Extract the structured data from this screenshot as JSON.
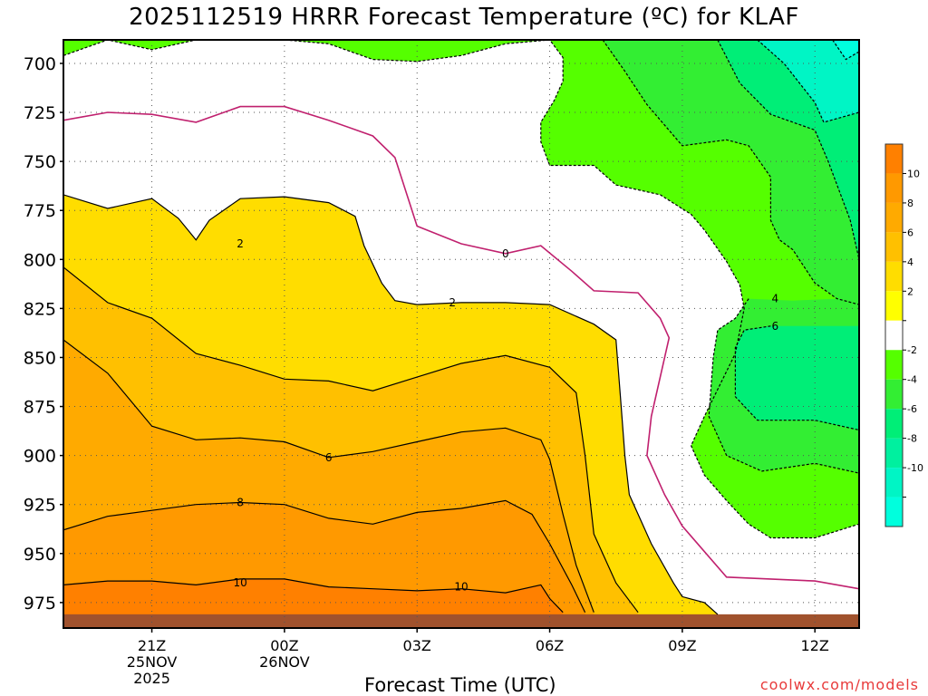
{
  "chart_data": {
    "type": "contour",
    "title": "2025112519 HRRR Forecast Temperature (ºC) for KLAF",
    "xlabel": "Forecast Time (UTC)",
    "ylabel": "",
    "credit": "coolwx.com/models",
    "x_ticks": [
      {
        "hour": 2,
        "label": "21Z",
        "sub1": "25NOV",
        "sub2": "2025"
      },
      {
        "hour": 5,
        "label": "00Z",
        "sub1": "26NOV",
        "sub2": ""
      },
      {
        "hour": 8,
        "label": "03Z",
        "sub1": "",
        "sub2": ""
      },
      {
        "hour": 11,
        "label": "06Z",
        "sub1": "",
        "sub2": ""
      },
      {
        "hour": 14,
        "label": "09Z",
        "sub1": "",
        "sub2": ""
      },
      {
        "hour": 17,
        "label": "12Z",
        "sub1": "",
        "sub2": ""
      }
    ],
    "xlim": [
      0,
      18
    ],
    "y_ticks": [
      700,
      725,
      750,
      775,
      800,
      825,
      850,
      875,
      900,
      925,
      950,
      975
    ],
    "ylim": [
      688,
      988
    ],
    "grid": true,
    "surface": [
      {
        "hour": 0,
        "p": 981
      },
      {
        "hour": 18,
        "p": 981
      }
    ],
    "colorbar": {
      "bins": [
        {
          "color": "#ff8000",
          "label": ""
        },
        {
          "color": "#ff9900",
          "label": "10"
        },
        {
          "color": "#ffaa00",
          "label": "8"
        },
        {
          "color": "#ffc000",
          "label": "6"
        },
        {
          "color": "#ffdd00",
          "label": "4"
        },
        {
          "color": "#ffff00",
          "label": "2"
        },
        {
          "color": "#ffffff",
          "label": ""
        },
        {
          "color": "#55ff00",
          "label": "-2"
        },
        {
          "color": "#33ee33",
          "label": "-4"
        },
        {
          "color": "#00ee77",
          "label": "-6"
        },
        {
          "color": "#00f09f",
          "label": "-8"
        },
        {
          "color": "#00f5c5",
          "label": "-10"
        },
        {
          "color": "#00ffdd",
          "label": ""
        }
      ]
    },
    "contours": [
      {
        "level": 0,
        "color": "#c0206e",
        "dashed": false,
        "label": "0",
        "label_at": {
          "hour": 10.0,
          "p": 797
        },
        "points": [
          [
            0,
            729
          ],
          [
            1,
            725
          ],
          [
            2,
            726
          ],
          [
            3,
            730
          ],
          [
            4,
            722
          ],
          [
            5,
            722
          ],
          [
            6,
            729
          ],
          [
            7,
            737
          ],
          [
            7.5,
            748
          ],
          [
            8,
            783
          ],
          [
            9,
            792
          ],
          [
            10,
            797
          ],
          [
            10.8,
            793
          ],
          [
            11.5,
            806
          ],
          [
            12,
            816
          ],
          [
            13,
            817
          ],
          [
            13.5,
            830
          ],
          [
            13.7,
            840
          ],
          [
            13.3,
            880
          ],
          [
            13.2,
            900
          ],
          [
            13.6,
            920
          ],
          [
            14,
            936
          ],
          [
            15,
            962
          ],
          [
            17,
            964
          ],
          [
            18,
            968
          ]
        ]
      },
      {
        "level": 2,
        "color": "#000000",
        "dashed": false,
        "label": "2",
        "label_at": {
          "hour": 4.0,
          "p": 792
        },
        "points": [
          [
            0,
            767
          ],
          [
            1,
            774
          ],
          [
            2,
            769
          ],
          [
            2.6,
            779
          ],
          [
            3,
            790
          ],
          [
            3.3,
            780
          ],
          [
            4,
            769
          ],
          [
            5,
            768
          ],
          [
            6,
            771
          ],
          [
            6.6,
            778
          ],
          [
            6.8,
            793
          ],
          [
            7.2,
            812
          ],
          [
            7.5,
            821
          ],
          [
            8,
            823
          ],
          [
            9,
            822
          ],
          [
            10,
            822
          ],
          [
            11,
            823
          ],
          [
            12,
            833
          ],
          [
            12.5,
            841
          ],
          [
            12.6,
            870
          ],
          [
            12.7,
            900
          ],
          [
            12.8,
            920
          ],
          [
            13.3,
            945
          ],
          [
            13.8,
            965
          ],
          [
            14,
            972
          ],
          [
            14.5,
            975
          ],
          [
            14.8,
            981
          ]
        ],
        "extra_labels": [
          {
            "hour": 8.8,
            "p": 822,
            "text": "2"
          }
        ]
      },
      {
        "level": 4,
        "color": "#000000",
        "dashed": false,
        "label": "",
        "label_at": null,
        "points": [
          [
            0,
            804
          ],
          [
            1,
            822
          ],
          [
            2,
            830
          ],
          [
            3,
            848
          ],
          [
            4,
            854
          ],
          [
            5,
            861
          ],
          [
            6,
            862
          ],
          [
            7,
            867
          ],
          [
            8,
            860
          ],
          [
            9,
            853
          ],
          [
            10,
            849
          ],
          [
            11,
            855
          ],
          [
            11.6,
            868
          ],
          [
            11.8,
            900
          ],
          [
            12,
            940
          ],
          [
            12.5,
            965
          ],
          [
            13,
            980
          ]
        ]
      },
      {
        "level": 6,
        "color": "#000000",
        "dashed": false,
        "label": "6",
        "label_at": {
          "hour": 6.0,
          "p": 901
        },
        "points": [
          [
            0,
            841
          ],
          [
            1,
            858
          ],
          [
            2,
            885
          ],
          [
            3,
            892
          ],
          [
            4,
            891
          ],
          [
            5,
            893
          ],
          [
            6,
            901
          ],
          [
            7,
            898
          ],
          [
            8,
            893
          ],
          [
            9,
            888
          ],
          [
            10,
            886
          ],
          [
            10.8,
            892
          ],
          [
            11,
            902
          ],
          [
            11.3,
            930
          ],
          [
            11.6,
            956
          ],
          [
            12,
            980
          ]
        ]
      },
      {
        "level": 8,
        "color": "#000000",
        "dashed": false,
        "label": "8",
        "label_at": {
          "hour": 4.0,
          "p": 924
        },
        "points": [
          [
            0,
            938
          ],
          [
            1,
            931
          ],
          [
            2,
            928
          ],
          [
            3,
            925
          ],
          [
            4,
            924
          ],
          [
            5,
            925
          ],
          [
            6,
            932
          ],
          [
            7,
            935
          ],
          [
            8,
            929
          ],
          [
            9,
            927
          ],
          [
            10,
            923
          ],
          [
            10.6,
            930
          ],
          [
            11,
            945
          ],
          [
            11.5,
            966
          ],
          [
            11.8,
            980
          ]
        ]
      },
      {
        "level": 10,
        "color": "#000000",
        "dashed": false,
        "label": "10",
        "label_at": {
          "hour": 4.0,
          "p": 965
        },
        "points": [
          [
            0,
            966
          ],
          [
            1,
            964
          ],
          [
            2,
            964
          ],
          [
            3,
            966
          ],
          [
            4,
            963
          ],
          [
            5,
            963
          ],
          [
            6,
            967
          ],
          [
            7,
            968
          ],
          [
            8,
            969
          ],
          [
            9,
            968
          ],
          [
            10,
            970
          ],
          [
            10.8,
            966
          ],
          [
            11,
            973
          ],
          [
            11.3,
            980
          ]
        ],
        "extra_labels": [
          {
            "hour": 9.0,
            "p": 967,
            "text": "10"
          }
        ]
      },
      {
        "level": -2,
        "color": "#000000",
        "dashed": true,
        "label": "",
        "label_at": null,
        "points": [
          [
            0,
            696
          ],
          [
            1,
            688
          ],
          [
            2,
            693
          ],
          [
            3,
            688
          ],
          [
            4,
            688
          ],
          [
            5,
            688
          ],
          [
            6,
            690
          ],
          [
            7,
            698
          ],
          [
            8,
            699
          ],
          [
            9,
            696
          ],
          [
            10,
            690
          ],
          [
            11,
            688
          ],
          [
            11.3,
            697
          ],
          [
            11.3,
            709
          ],
          [
            11.1,
            719
          ],
          [
            10.8,
            730
          ],
          [
            10.8,
            740
          ],
          [
            11,
            752
          ],
          [
            12,
            752
          ],
          [
            12.5,
            762
          ],
          [
            13.5,
            767
          ],
          [
            14.2,
            777
          ],
          [
            14.5,
            785
          ],
          [
            15,
            801
          ],
          [
            15.3,
            813
          ],
          [
            15.4,
            825
          ],
          [
            15.2,
            848
          ],
          [
            14.5,
            880
          ],
          [
            14.2,
            895
          ],
          [
            14.5,
            910
          ],
          [
            15,
            923
          ],
          [
            15.5,
            935
          ],
          [
            16,
            942
          ],
          [
            17,
            942
          ],
          [
            18,
            935
          ]
        ]
      },
      {
        "level": -4,
        "color": "#000000",
        "dashed": true,
        "label": "4",
        "label_at": {
          "hour": 16.1,
          "p": 820
        },
        "points": [
          [
            12.2,
            688
          ],
          [
            12.7,
            704
          ],
          [
            13.2,
            721
          ],
          [
            14,
            742
          ],
          [
            15,
            739
          ],
          [
            15.5,
            742
          ],
          [
            16,
            758
          ],
          [
            16,
            780
          ],
          [
            16.2,
            790
          ],
          [
            16.5,
            795
          ],
          [
            17,
            812
          ],
          [
            17.5,
            820
          ],
          [
            18,
            823
          ]
        ],
        "points2": [
          [
            15.5,
            820
          ],
          [
            15.2,
            830
          ],
          [
            14.8,
            836
          ],
          [
            14.7,
            850
          ],
          [
            14.6,
            880
          ],
          [
            15,
            900
          ],
          [
            15.8,
            908
          ],
          [
            17,
            904
          ],
          [
            18,
            909
          ]
        ]
      },
      {
        "level": -6,
        "color": "#000000",
        "dashed": true,
        "label": "6",
        "label_at": {
          "hour": 16.1,
          "p": 834
        },
        "points": [
          [
            16,
            834
          ],
          [
            15.4,
            836
          ],
          [
            15.2,
            845
          ],
          [
            15.2,
            870
          ],
          [
            15.7,
            882
          ],
          [
            17,
            882
          ],
          [
            18,
            887
          ]
        ],
        "points2": [
          [
            14.8,
            688
          ],
          [
            15.3,
            710
          ],
          [
            16,
            726
          ],
          [
            17,
            734
          ],
          [
            17.3,
            750
          ],
          [
            17.8,
            780
          ],
          [
            18,
            800
          ]
        ]
      },
      {
        "level": -8,
        "color": "#000000",
        "dashed": true,
        "label": "",
        "label_at": null,
        "points": [
          [
            15.7,
            688
          ],
          [
            16.3,
            700
          ],
          [
            17,
            720
          ],
          [
            17.2,
            730
          ],
          [
            18,
            725
          ]
        ],
        "points2": [
          [
            17.4,
            688
          ],
          [
            17.7,
            698
          ],
          [
            18,
            694
          ]
        ]
      }
    ]
  }
}
